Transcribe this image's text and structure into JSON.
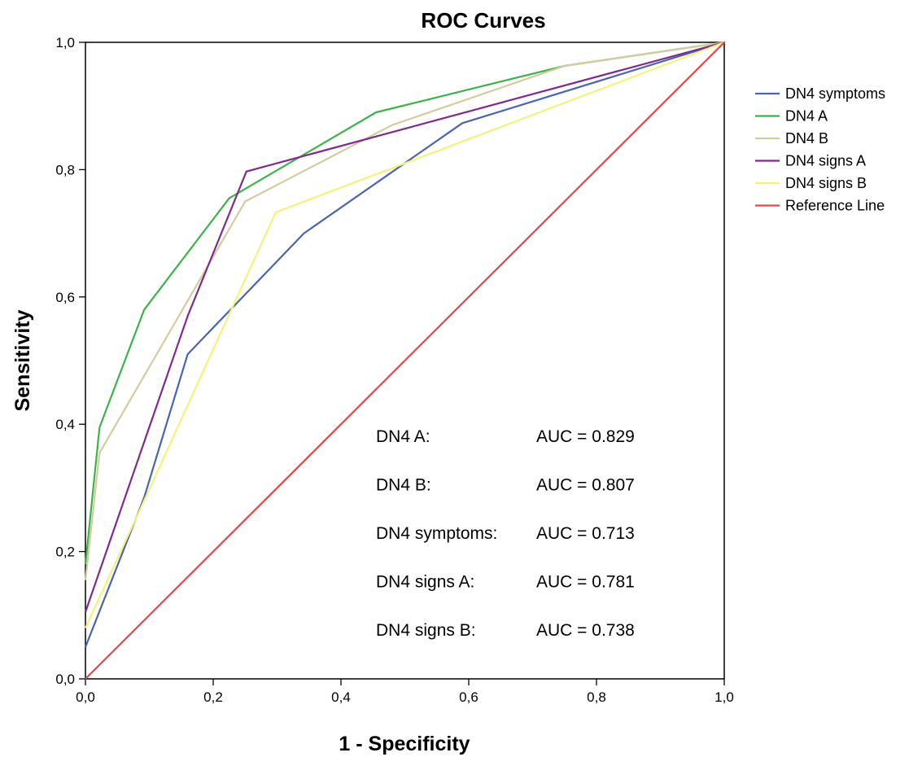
{
  "chart_data": {
    "type": "line",
    "title": "ROC Curves",
    "xlabel": "1 - Specificity",
    "ylabel": "Sensitivity",
    "xlim": [
      0,
      1
    ],
    "ylim": [
      0,
      1
    ],
    "x_ticks": [
      "0,0",
      "0,2",
      "0,4",
      "0,6",
      "0,8",
      "1,0"
    ],
    "y_ticks": [
      "0,0",
      "0,2",
      "0,4",
      "0,6",
      "0,8",
      "1,0"
    ],
    "grid": false,
    "legend_position": "right",
    "series": [
      {
        "name": "DN4 symptoms",
        "color": "#4a64b4",
        "points": [
          [
            0,
            0.05
          ],
          [
            0.092,
            0.285
          ],
          [
            0.16,
            0.51
          ],
          [
            0.342,
            0.7
          ],
          [
            0.59,
            0.873
          ],
          [
            1,
            1
          ]
        ]
      },
      {
        "name": "DN4 A",
        "color": "#3cb34a",
        "points": [
          [
            0,
            0.18
          ],
          [
            0.022,
            0.395
          ],
          [
            0.092,
            0.58
          ],
          [
            0.225,
            0.755
          ],
          [
            0.455,
            0.89
          ],
          [
            0.75,
            0.963
          ],
          [
            1,
            1
          ]
        ]
      },
      {
        "name": "DN4 B",
        "color": "#d4cc9e",
        "points": [
          [
            0,
            0.155
          ],
          [
            0.022,
            0.355
          ],
          [
            0.25,
            0.75
          ],
          [
            0.48,
            0.87
          ],
          [
            0.75,
            0.963
          ],
          [
            1,
            1
          ]
        ]
      },
      {
        "name": "DN4 signs A",
        "color": "#7f2a8c",
        "points": [
          [
            0,
            0.105
          ],
          [
            0.16,
            0.57
          ],
          [
            0.252,
            0.797
          ],
          [
            1,
            1
          ]
        ]
      },
      {
        "name": "DN4 signs B",
        "color": "#f5f27a",
        "points": [
          [
            0,
            0.08
          ],
          [
            0.092,
            0.28
          ],
          [
            0.298,
            0.733
          ],
          [
            1,
            1
          ]
        ]
      },
      {
        "name": "Reference Line",
        "color": "#e64646",
        "points": [
          [
            0,
            0
          ],
          [
            1,
            1
          ]
        ]
      }
    ],
    "annotations": [
      {
        "label": "DN4 A:",
        "value": "AUC = 0.829"
      },
      {
        "label": "DN4 B:",
        "value": "AUC = 0.807"
      },
      {
        "label": "DN4 symptoms:",
        "value": "AUC = 0.713"
      },
      {
        "label": "DN4 signs A:",
        "value": "AUC = 0.781"
      },
      {
        "label": "DN4 signs B:",
        "value": "AUC = 0.738"
      }
    ]
  }
}
